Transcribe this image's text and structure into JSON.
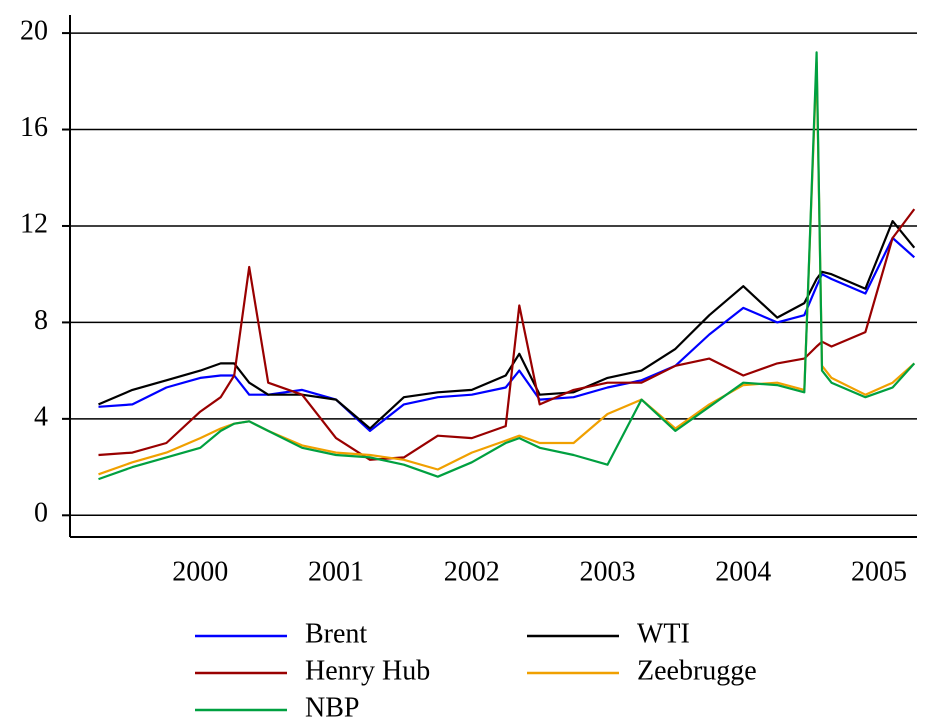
{
  "chart_data": {
    "type": "line",
    "x": [
      1999.75,
      2000.0,
      2000.25,
      2000.5,
      2000.65,
      2000.75,
      2000.86,
      2001.0,
      2001.25,
      2001.5,
      2001.75,
      2002.0,
      2002.25,
      2002.5,
      2002.75,
      2002.85,
      2003.0,
      2003.25,
      2003.5,
      2003.75,
      2004.0,
      2004.25,
      2004.5,
      2004.75,
      2004.95,
      2005.04,
      2005.08,
      2005.15,
      2005.4,
      2005.6,
      2005.76
    ],
    "series": [
      {
        "name": "Brent",
        "color": "#0000ff",
        "values": [
          4.5,
          4.6,
          5.3,
          5.7,
          5.8,
          5.8,
          5.0,
          5.0,
          5.2,
          4.8,
          3.5,
          4.6,
          4.9,
          5.0,
          5.3,
          6.0,
          4.8,
          4.9,
          5.3,
          5.6,
          6.2,
          7.5,
          8.6,
          8.0,
          8.3,
          9.5,
          10.0,
          9.8,
          9.2,
          11.5,
          10.7
        ]
      },
      {
        "name": "WTI",
        "color": "#000000",
        "values": [
          4.6,
          5.2,
          5.6,
          6.0,
          6.3,
          6.3,
          5.5,
          5.0,
          5.0,
          4.8,
          3.6,
          4.9,
          5.1,
          5.2,
          5.8,
          6.7,
          5.0,
          5.1,
          5.7,
          6.0,
          6.9,
          8.3,
          9.5,
          8.2,
          8.8,
          9.8,
          10.1,
          10.0,
          9.4,
          12.2,
          11.1
        ]
      },
      {
        "name": "Henry Hub",
        "color": "#990000",
        "values": [
          2.5,
          2.6,
          3.0,
          4.3,
          4.9,
          5.8,
          10.3,
          5.5,
          5.0,
          3.2,
          2.3,
          2.4,
          3.3,
          3.2,
          3.7,
          8.7,
          4.6,
          5.2,
          5.5,
          5.5,
          6.2,
          6.5,
          5.8,
          6.3,
          6.5,
          7.0,
          7.2,
          7.0,
          7.6,
          11.5,
          12.7
        ]
      },
      {
        "name": "Zeebrugge",
        "color": "#f0a000",
        "values": [
          1.7,
          2.2,
          2.6,
          3.2,
          3.6,
          3.8,
          3.9,
          3.5,
          2.9,
          2.6,
          2.5,
          2.3,
          1.9,
          2.6,
          3.1,
          3.3,
          3.0,
          3.0,
          4.2,
          4.8,
          3.6,
          4.6,
          5.4,
          5.5,
          5.2,
          18.8,
          6.2,
          5.7,
          5.0,
          5.5,
          6.3
        ]
      },
      {
        "name": "NBP",
        "color": "#00a040",
        "values": [
          1.5,
          2.0,
          2.4,
          2.8,
          3.5,
          3.8,
          3.9,
          3.5,
          2.8,
          2.5,
          2.4,
          2.1,
          1.6,
          2.2,
          3.0,
          3.2,
          2.8,
          2.5,
          2.1,
          4.8,
          3.5,
          4.5,
          5.5,
          5.4,
          5.1,
          19.2,
          6.0,
          5.5,
          4.9,
          5.3,
          6.3
        ]
      }
    ],
    "xlim": [
      1999.54,
      2005.78
    ],
    "xticks": [
      {
        "value": 2000.5,
        "label": "2000"
      },
      {
        "value": 2001.5,
        "label": "2001"
      },
      {
        "value": 2002.5,
        "label": "2002"
      },
      {
        "value": 2003.5,
        "label": "2003"
      },
      {
        "value": 2004.5,
        "label": "2004"
      },
      {
        "value": 2005.5,
        "label": "2005"
      }
    ],
    "ylim": [
      -0.9,
      20.75
    ],
    "yticks": [
      0,
      4,
      8,
      12,
      16,
      20
    ],
    "grid": true
  }
}
